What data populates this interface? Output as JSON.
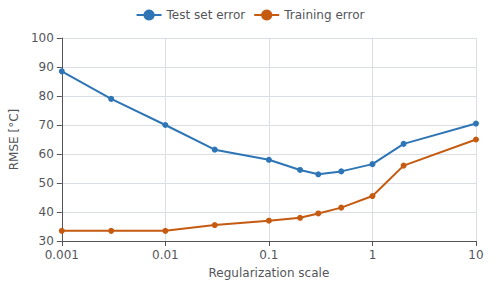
{
  "chart_data": {
    "type": "line",
    "x": [
      0.001,
      0.003,
      0.01,
      0.03,
      0.1,
      0.2,
      0.3,
      0.5,
      1.0,
      2.0,
      10.0
    ],
    "series": [
      {
        "name": "Test set error",
        "color": "#2E75B6",
        "values": [
          88.5,
          79.0,
          70.0,
          61.5,
          58.0,
          54.5,
          53.0,
          54.0,
          56.5,
          63.5,
          70.5
        ]
      },
      {
        "name": "Training error",
        "color": "#C55A11",
        "values": [
          33.5,
          33.5,
          33.5,
          35.5,
          37.0,
          38.0,
          39.5,
          41.5,
          45.5,
          56.0,
          65.0
        ]
      }
    ],
    "xlabel": "Regularization scale",
    "ylabel": "RMSE [°C]",
    "log": "x",
    "xlim": [
      0.001,
      10
    ],
    "xticks": [
      0.001,
      0.01,
      0.1,
      1,
      10
    ],
    "ylim": [
      30,
      100
    ],
    "yticks": [
      30,
      40,
      50,
      60,
      70,
      80,
      90,
      100
    ],
    "grid": true,
    "legend": "top",
    "marker": "circle"
  }
}
